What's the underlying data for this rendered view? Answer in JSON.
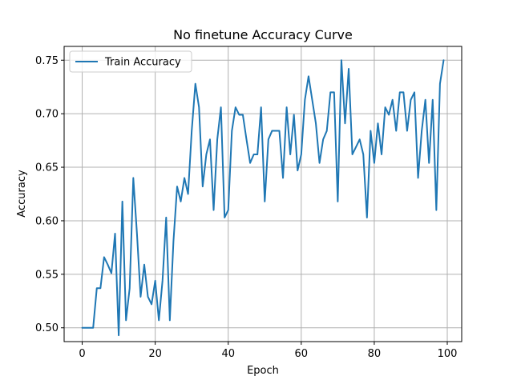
{
  "chart_data": {
    "type": "line",
    "title": "No finetune Accuracy Curve",
    "xlabel": "Epoch",
    "ylabel": "Accuracy",
    "xlim": [
      -4.95,
      103.95
    ],
    "ylim": [
      0.4871,
      0.7629
    ],
    "xticks": [
      0,
      20,
      40,
      60,
      80,
      100
    ],
    "yticks": [
      0.5,
      0.55,
      0.6,
      0.65,
      0.7,
      0.75
    ],
    "xtick_labels": [
      "0",
      "20",
      "40",
      "60",
      "80",
      "100"
    ],
    "ytick_labels": [
      "0.50",
      "0.55",
      "0.60",
      "0.65",
      "0.70",
      "0.75"
    ],
    "grid": true,
    "legend_position": "top-left",
    "series": [
      {
        "name": "Train Accuracy",
        "color": "#1f77b4",
        "x": [
          0,
          1,
          2,
          3,
          4,
          5,
          6,
          7,
          8,
          9,
          10,
          11,
          12,
          13,
          14,
          15,
          16,
          17,
          18,
          19,
          20,
          21,
          22,
          23,
          24,
          25,
          26,
          27,
          28,
          29,
          30,
          31,
          32,
          33,
          34,
          35,
          36,
          37,
          38,
          39,
          40,
          41,
          42,
          43,
          44,
          45,
          46,
          47,
          48,
          49,
          50,
          51,
          52,
          53,
          54,
          55,
          56,
          57,
          58,
          59,
          60,
          61,
          62,
          63,
          64,
          65,
          66,
          67,
          68,
          69,
          70,
          71,
          72,
          73,
          74,
          75,
          76,
          77,
          78,
          79,
          80,
          81,
          82,
          83,
          84,
          85,
          86,
          87,
          88,
          89,
          90,
          91,
          92,
          93,
          94,
          95,
          96,
          97,
          98,
          99
        ],
        "values": [
          0.5,
          0.5,
          0.5,
          0.5,
          0.537,
          0.537,
          0.566,
          0.559,
          0.551,
          0.588,
          0.493,
          0.618,
          0.507,
          0.537,
          0.64,
          0.588,
          0.529,
          0.559,
          0.529,
          0.522,
          0.544,
          0.507,
          0.544,
          0.603,
          0.507,
          0.581,
          0.632,
          0.618,
          0.64,
          0.625,
          0.684,
          0.728,
          0.706,
          0.632,
          0.662,
          0.676,
          0.61,
          0.676,
          0.706,
          0.603,
          0.61,
          0.684,
          0.706,
          0.699,
          0.699,
          0.676,
          0.654,
          0.662,
          0.662,
          0.706,
          0.618,
          0.676,
          0.684,
          0.684,
          0.684,
          0.64,
          0.706,
          0.662,
          0.699,
          0.647,
          0.662,
          0.713,
          0.735,
          0.713,
          0.691,
          0.654,
          0.676,
          0.684,
          0.72,
          0.72,
          0.618,
          0.75,
          0.691,
          0.742,
          0.662,
          0.669,
          0.676,
          0.662,
          0.603,
          0.684,
          0.654,
          0.691,
          0.662,
          0.706,
          0.699,
          0.713,
          0.684,
          0.72,
          0.72,
          0.684,
          0.713,
          0.72,
          0.64,
          0.684,
          0.713,
          0.654,
          0.713,
          0.61,
          0.728,
          0.75
        ]
      }
    ]
  }
}
